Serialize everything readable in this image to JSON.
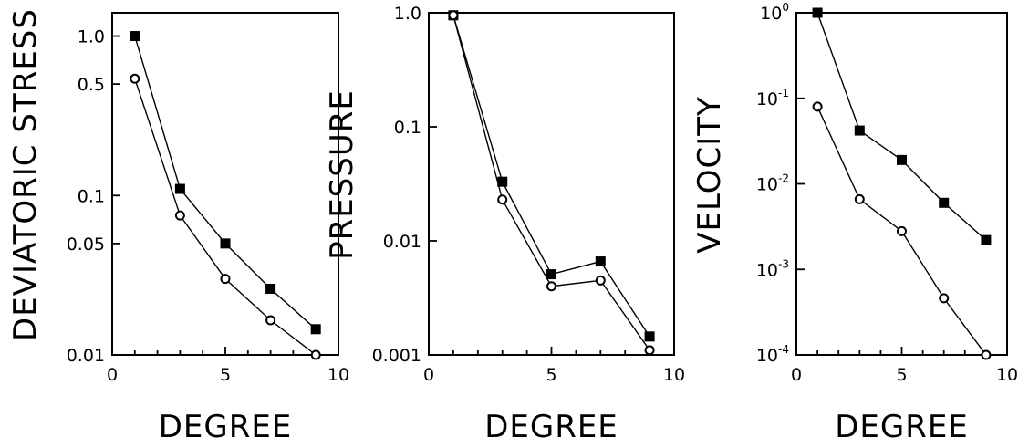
{
  "chart_data": [
    {
      "type": "line",
      "title": "",
      "xlabel": "DEGREE",
      "ylabel": "DEVIATORIC STRESS",
      "xlim": [
        0,
        10
      ],
      "ylim": [
        0.01,
        1.4
      ],
      "yscale": "log",
      "x_ticks": [
        0,
        5,
        10
      ],
      "y_ticks": [
        {
          "value": 1.0,
          "label": "1.0"
        },
        {
          "value": 0.5,
          "label": "0.5"
        },
        {
          "value": 0.1,
          "label": "0.1"
        },
        {
          "value": 0.05,
          "label": "0.05"
        },
        {
          "value": 0.01,
          "label": "0.01"
        }
      ],
      "series": [
        {
          "marker": "filled-square",
          "x": [
            1,
            3,
            5,
            7,
            9
          ],
          "y": [
            1.0,
            0.11,
            0.05,
            0.026,
            0.0145
          ]
        },
        {
          "marker": "open-circle",
          "x": [
            1,
            3,
            5,
            7,
            9
          ],
          "y": [
            0.54,
            0.075,
            0.03,
            0.0165,
            0.01
          ]
        }
      ]
    },
    {
      "type": "line",
      "title": "",
      "xlabel": "DEGREE",
      "ylabel": "PRESSURE",
      "xlim": [
        0,
        10
      ],
      "ylim": [
        0.001,
        1.0
      ],
      "yscale": "log",
      "x_ticks": [
        0,
        5,
        10
      ],
      "y_ticks": [
        {
          "value": 1.0,
          "label": "1.0"
        },
        {
          "value": 0.1,
          "label": "0.1"
        },
        {
          "value": 0.01,
          "label": "0.01"
        },
        {
          "value": 0.001,
          "label": "0.001"
        }
      ],
      "series": [
        {
          "marker": "filled-square",
          "x": [
            1,
            3,
            5,
            7,
            9
          ],
          "y": [
            0.95,
            0.033,
            0.0051,
            0.0066,
            0.00145
          ]
        },
        {
          "marker": "open-circle",
          "x": [
            1,
            3,
            5,
            7,
            9
          ],
          "y": [
            0.95,
            0.023,
            0.004,
            0.0045,
            0.0011
          ]
        }
      ]
    },
    {
      "type": "line",
      "title": "",
      "xlabel": "DEGREE",
      "ylabel": "VELOCITY",
      "xlim": [
        0,
        10
      ],
      "ylim": [
        0.0001,
        1.0
      ],
      "yscale": "log",
      "x_ticks": [
        0,
        5,
        10
      ],
      "y_ticks": [
        {
          "value": 1,
          "base": "10",
          "exp": "0"
        },
        {
          "value": 0.1,
          "base": "10",
          "exp": "-1"
        },
        {
          "value": 0.01,
          "base": "10",
          "exp": "-2"
        },
        {
          "value": 0.001,
          "base": "10",
          "exp": "-3"
        },
        {
          "value": 0.0001,
          "base": "10",
          "exp": "-4"
        }
      ],
      "series": [
        {
          "marker": "filled-square",
          "x": [
            1,
            3,
            5,
            7,
            9
          ],
          "y": [
            1.0,
            0.042,
            0.019,
            0.006,
            0.0022
          ]
        },
        {
          "marker": "open-circle",
          "x": [
            1,
            3,
            5,
            7,
            9
          ],
          "y": [
            0.08,
            0.0066,
            0.0028,
            0.00046,
            0.0001
          ]
        }
      ]
    }
  ]
}
